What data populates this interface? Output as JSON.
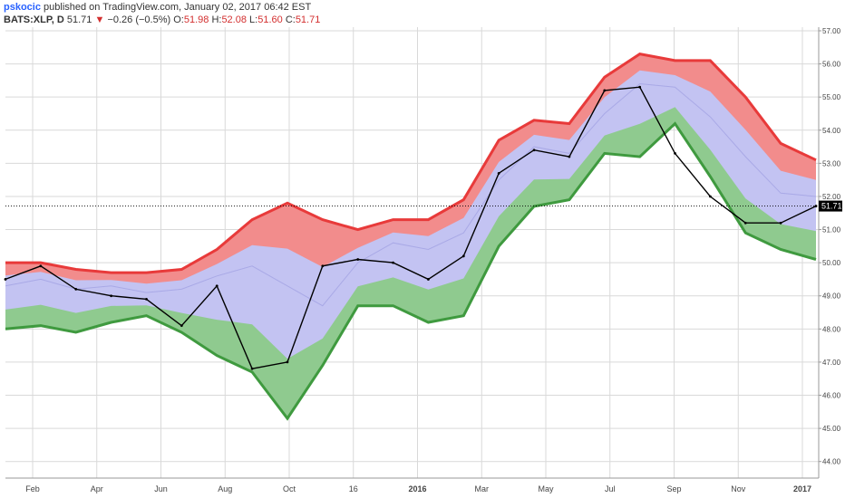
{
  "header": {
    "author": "pskocic",
    "published_text": "published on TradingView.com, January 02, 2017 06:42 EST",
    "symbol": "BATS:XLP, D",
    "last": "51.71",
    "change_arrow": "▼",
    "change": "−0.26 (−0.5%)",
    "o_label": "O:",
    "o": "51.98",
    "h_label": "H:",
    "h": "52.08",
    "l_label": "L:",
    "l": "51.60",
    "c_label": "C:",
    "c": "51.71"
  },
  "price_tag": "51.71",
  "colors": {
    "upper_band": "#f28c8c",
    "upper_line": "#e83a3a",
    "middle_band": "#c3c3f2",
    "middle_line": "#a9a9e6",
    "lower_band": "#8fca8f",
    "lower_line": "#3f9a3f",
    "price": "#000000",
    "grid": "#d9d9d9"
  },
  "chart_data": {
    "type": "line",
    "ylim": [
      43.5,
      57.0
    ],
    "y_ticks": [
      "44.00",
      "45.00",
      "46.00",
      "47.00",
      "48.00",
      "49.00",
      "50.00",
      "51.00",
      "52.00",
      "53.00",
      "54.00",
      "55.00",
      "56.00",
      "57.00"
    ],
    "x_ticks": [
      "Feb",
      "Apr",
      "Jun",
      "Aug",
      "Oct",
      "16",
      "2016",
      "Mar",
      "May",
      "Jul",
      "Sep",
      "Nov",
      "2017"
    ],
    "bold_x_ticks": [
      "2016",
      "2017"
    ],
    "last_price": 51.71,
    "x": [
      "Jan-2015",
      "Feb-2015",
      "Mar-2015",
      "Apr-2015",
      "May-2015",
      "Jun-2015",
      "Jul-2015",
      "Aug-2015",
      "Sep-2015",
      "Oct-2015",
      "Nov-2015",
      "Dec-2015",
      "Jan-2016",
      "Feb-2016",
      "Mar-2016",
      "Apr-2016",
      "May-2016",
      "Jun-2016",
      "Jul-2016",
      "Aug-2016",
      "Sep-2016",
      "Oct-2016",
      "Nov-2016",
      "Dec-2016"
    ],
    "series": [
      {
        "values": [
          50.0,
          50.0,
          49.8,
          49.7,
          49.7,
          49.8,
          50.4,
          51.3,
          51.8,
          51.3,
          51.0,
          51.3,
          51.3,
          51.9,
          53.7,
          54.3,
          54.2,
          55.6,
          56.3,
          56.1,
          56.1,
          55.0,
          53.6,
          53.1
        ]
      },
      {
        "values": [
          49.3,
          49.5,
          49.2,
          49.3,
          49.1,
          49.2,
          49.6,
          49.9,
          49.3,
          48.7,
          50.0,
          50.6,
          50.4,
          50.9,
          52.5,
          53.5,
          53.3,
          54.5,
          55.4,
          55.3,
          54.4,
          53.2,
          52.1,
          52.0
        ]
      },
      {
        "values": [
          48.0,
          48.1,
          47.9,
          48.2,
          48.4,
          47.9,
          47.2,
          46.7,
          45.3,
          46.9,
          48.7,
          48.7,
          48.2,
          48.4,
          50.5,
          51.7,
          51.9,
          53.3,
          53.2,
          54.2,
          52.6,
          50.9,
          50.4,
          50.1
        ]
      },
      {
        "values": [
          49.5,
          49.9,
          49.2,
          49.0,
          48.9,
          48.1,
          49.3,
          46.8,
          47.0,
          49.9,
          50.1,
          50.0,
          49.5,
          50.2,
          52.7,
          53.4,
          53.2,
          55.2,
          55.3,
          53.3,
          52.0,
          51.2,
          51.2,
          51.71
        ]
      }
    ]
  }
}
